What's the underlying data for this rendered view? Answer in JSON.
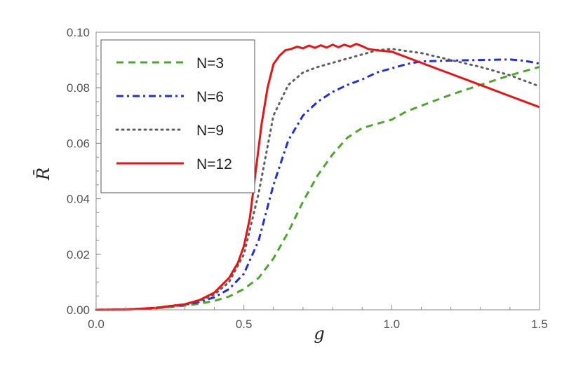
{
  "chart_data": {
    "type": "line",
    "xlabel": "g",
    "ylabel": "R̄",
    "xlim": [
      0.0,
      1.5
    ],
    "ylim": [
      0.0,
      0.1
    ],
    "xticks": [
      0.0,
      0.5,
      1.0,
      1.5
    ],
    "xtick_labels": [
      "0.0",
      "0.5",
      "1.0",
      "1.5"
    ],
    "yticks": [
      0.0,
      0.02,
      0.04,
      0.06,
      0.08,
      0.1
    ],
    "ytick_labels": [
      "0.00",
      "0.02",
      "0.04",
      "0.06",
      "0.08",
      "0.10"
    ],
    "legend_position": "top-left",
    "grid": false,
    "series": [
      {
        "name": "N=3",
        "color": "#4aa829",
        "dash": "dashed",
        "x": [
          0.0,
          0.1,
          0.2,
          0.3,
          0.35,
          0.4,
          0.45,
          0.5,
          0.55,
          0.6,
          0.65,
          0.7,
          0.75,
          0.8,
          0.85,
          0.9,
          0.95,
          1.0,
          1.05,
          1.1,
          1.15,
          1.2,
          1.3,
          1.4,
          1.5
        ],
        "y": [
          0.0,
          0.0001,
          0.0005,
          0.0015,
          0.0022,
          0.0032,
          0.0048,
          0.0075,
          0.0115,
          0.0185,
          0.028,
          0.039,
          0.0485,
          0.056,
          0.062,
          0.0655,
          0.067,
          0.0685,
          0.0715,
          0.0735,
          0.0755,
          0.0775,
          0.081,
          0.0845,
          0.0875
        ]
      },
      {
        "name": "N=6",
        "color": "#1f2ee0",
        "dash": "dash-dot",
        "x": [
          0.0,
          0.1,
          0.2,
          0.3,
          0.35,
          0.4,
          0.45,
          0.5,
          0.55,
          0.6,
          0.65,
          0.7,
          0.75,
          0.8,
          0.85,
          0.9,
          0.95,
          1.0,
          1.05,
          1.1,
          1.2,
          1.3,
          1.4,
          1.45,
          1.5
        ],
        "y": [
          0.0,
          0.0001,
          0.0006,
          0.0018,
          0.0028,
          0.0045,
          0.0075,
          0.013,
          0.025,
          0.045,
          0.061,
          0.07,
          0.075,
          0.0785,
          0.081,
          0.083,
          0.0855,
          0.087,
          0.0885,
          0.0895,
          0.0898,
          0.09,
          0.0902,
          0.0897,
          0.0887
        ]
      },
      {
        "name": "N=9",
        "color": "#606060",
        "dash": "dotted",
        "x": [
          0.0,
          0.1,
          0.2,
          0.3,
          0.35,
          0.4,
          0.45,
          0.5,
          0.55,
          0.6,
          0.65,
          0.7,
          0.75,
          0.8,
          0.85,
          0.9,
          0.95,
          1.0,
          1.1,
          1.2,
          1.3,
          1.4,
          1.5
        ],
        "y": [
          0.0,
          0.0001,
          0.0007,
          0.002,
          0.0032,
          0.0055,
          0.01,
          0.02,
          0.042,
          0.07,
          0.081,
          0.0855,
          0.0875,
          0.089,
          0.0905,
          0.092,
          0.0935,
          0.094,
          0.0925,
          0.09,
          0.0875,
          0.0845,
          0.0805
        ]
      },
      {
        "name": "N=12",
        "color": "#ee1111",
        "dash": "solid",
        "x": [
          0.0,
          0.1,
          0.2,
          0.3,
          0.35,
          0.4,
          0.45,
          0.48,
          0.5,
          0.52,
          0.54,
          0.56,
          0.58,
          0.6,
          0.62,
          0.64,
          0.66,
          0.68,
          0.7,
          0.72,
          0.74,
          0.76,
          0.78,
          0.8,
          0.82,
          0.84,
          0.86,
          0.88,
          0.9,
          0.92,
          0.95,
          1.0,
          1.05,
          1.1,
          1.2,
          1.3,
          1.4,
          1.5
        ],
        "y": [
          0.0,
          0.0001,
          0.0007,
          0.002,
          0.0035,
          0.0062,
          0.0115,
          0.017,
          0.023,
          0.033,
          0.05,
          0.067,
          0.08,
          0.0885,
          0.0915,
          0.0935,
          0.094,
          0.0948,
          0.0942,
          0.0952,
          0.0944,
          0.0953,
          0.0945,
          0.0955,
          0.0946,
          0.0955,
          0.0948,
          0.0958,
          0.095,
          0.094,
          0.0935,
          0.093,
          0.091,
          0.089,
          0.085,
          0.081,
          0.077,
          0.073
        ]
      }
    ]
  }
}
